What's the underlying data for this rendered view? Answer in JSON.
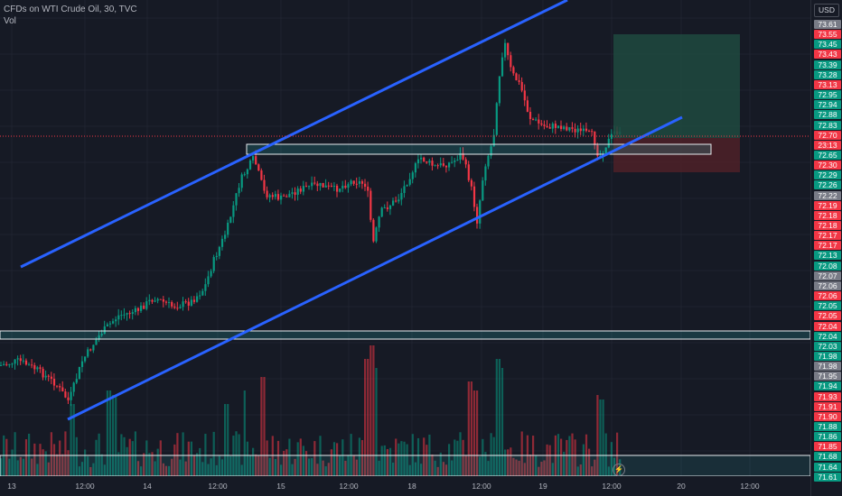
{
  "header": {
    "title": "CFDs on WTI Crude Oil, 30, TVC",
    "volume_label": "Vol"
  },
  "currency_button": "USD",
  "price_axis": [
    {
      "v": "73.61",
      "c": "#787b86"
    },
    {
      "v": "73.55",
      "c": "#f23645"
    },
    {
      "v": "73.45",
      "c": "#089981"
    },
    {
      "v": "73.43",
      "c": "#f23645"
    },
    {
      "v": "73.39",
      "c": "#089981"
    },
    {
      "v": "73.28",
      "c": "#089981"
    },
    {
      "v": "73.13",
      "c": "#f23645"
    },
    {
      "v": "72.95",
      "c": "#089981"
    },
    {
      "v": "72.94",
      "c": "#089981"
    },
    {
      "v": "72.88",
      "c": "#089981"
    },
    {
      "v": "72.83",
      "c": "#089981"
    },
    {
      "v": "72.70",
      "c": "#f23645"
    },
    {
      "v": "23:13",
      "c": "#f23645"
    },
    {
      "v": "72.65",
      "c": "#089981"
    },
    {
      "v": "72.30",
      "c": "#f23645"
    },
    {
      "v": "72.29",
      "c": "#089981"
    },
    {
      "v": "72.26",
      "c": "#089981"
    },
    {
      "v": "72.22",
      "c": "#787b86"
    },
    {
      "v": "72.19",
      "c": "#f23645"
    },
    {
      "v": "72.18",
      "c": "#f23645"
    },
    {
      "v": "72.18",
      "c": "#f23645"
    },
    {
      "v": "72.17",
      "c": "#f23645"
    },
    {
      "v": "72.17",
      "c": "#f23645"
    },
    {
      "v": "72.13",
      "c": "#089981"
    },
    {
      "v": "72.08",
      "c": "#089981"
    },
    {
      "v": "72.07",
      "c": "#787b86"
    },
    {
      "v": "72.06",
      "c": "#787b86"
    },
    {
      "v": "72.06",
      "c": "#f23645"
    },
    {
      "v": "72.05",
      "c": "#089981"
    },
    {
      "v": "72.05",
      "c": "#f23645"
    },
    {
      "v": "72.04",
      "c": "#f23645"
    },
    {
      "v": "72.04",
      "c": "#089981"
    },
    {
      "v": "72.03",
      "c": "#089981"
    },
    {
      "v": "71.98",
      "c": "#089981"
    },
    {
      "v": "71.98",
      "c": "#787b86"
    },
    {
      "v": "71.95",
      "c": "#787b86"
    },
    {
      "v": "71.94",
      "c": "#089981"
    },
    {
      "v": "71.93",
      "c": "#f23645"
    },
    {
      "v": "71.91",
      "c": "#f23645"
    },
    {
      "v": "71.90",
      "c": "#f23645"
    },
    {
      "v": "71.88",
      "c": "#089981"
    },
    {
      "v": "71.86",
      "c": "#089981"
    },
    {
      "v": "71.85",
      "c": "#f23645"
    },
    {
      "v": "71.68",
      "c": "#089981"
    },
    {
      "v": "71.64",
      "c": "#089981"
    },
    {
      "v": "71.61",
      "c": "#089981"
    }
  ],
  "time_axis": [
    "13",
    "12:00",
    "14",
    "12:00",
    "15",
    "12:00",
    "18",
    "12:00",
    "19",
    "12:00",
    "20",
    "12:00"
  ],
  "colors": {
    "up": "#089981",
    "down": "#f23645",
    "channel": "#2962ff",
    "zone": "#2ec8c8",
    "target": "#1e4a40",
    "stop": "#4a2028",
    "background": "#161a25"
  },
  "chart_data": {
    "type": "candlestick",
    "title": "CFDs on WTI Crude Oil, 30, TVC",
    "interval": "30",
    "source": "TVC",
    "x": [
      "13",
      "12:00",
      "14",
      "12:00",
      "15",
      "12:00",
      "18",
      "12:00",
      "19",
      "12:00",
      "20",
      "12:00"
    ],
    "y_ticks": [
      73.61,
      73.55,
      73.45,
      73.43,
      73.39,
      73.28,
      73.13,
      72.95,
      72.94,
      72.88,
      72.83,
      72.7,
      72.65,
      72.3,
      72.29,
      72.26,
      72.22,
      72.19,
      72.18,
      72.17,
      72.13,
      72.08,
      72.07,
      72.06,
      72.05,
      72.04,
      72.03,
      71.98,
      71.95,
      71.94,
      71.93,
      71.91,
      71.9,
      71.88,
      71.86,
      71.85,
      71.68,
      71.64,
      71.61
    ],
    "current_price": 72.7,
    "bar_countdown": "23:13",
    "volume_series": "Vol",
    "grid": true,
    "annotations": [
      "ascending channel upper line",
      "ascending channel lower line",
      "horizontal zone",
      "horizontal zone",
      "long position: target zone",
      "long position: stop zone"
    ]
  }
}
